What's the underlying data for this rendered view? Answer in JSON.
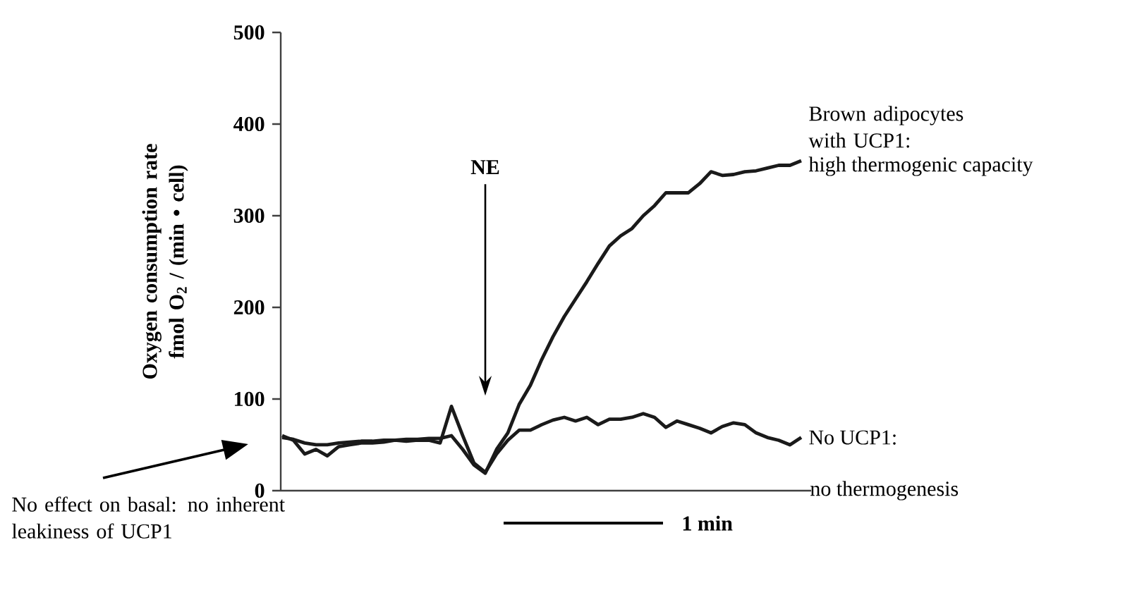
{
  "chart_data": {
    "type": "line",
    "ylabel": "Oxygen consumption rate fmol O$_{2}$ / (min • cell)",
    "categories": [
      null,
      null,
      null,
      null,
      null,
      null,
      null,
      null,
      null,
      null,
      null,
      null,
      null,
      null,
      null,
      null,
      null,
      null,
      null,
      null,
      null,
      null,
      null,
      null,
      null,
      null,
      null,
      null,
      null,
      null,
      null,
      null,
      null,
      null,
      null,
      null,
      null,
      null,
      null,
      null,
      null,
      null,
      null,
      null,
      null,
      null,
      null
    ],
    "ylim": [
      0,
      500
    ],
    "yticks": [
      0,
      100,
      200,
      300,
      400,
      500
    ],
    "legend": false,
    "series": [
      {
        "name": "Brown adipocytes with UCP1:",
        "color": "#1a1a1a",
        "values": [
          58,
          56,
          52,
          50,
          50,
          52,
          53,
          54,
          54,
          55,
          55,
          56,
          56,
          57,
          57,
          60,
          45,
          28,
          19,
          45,
          63,
          94,
          115,
          143,
          168,
          190,
          209,
          228,
          248,
          267,
          278,
          286,
          300,
          311,
          325,
          325,
          325,
          335,
          348,
          344,
          345,
          348,
          349,
          352,
          355,
          355,
          360
        ]
      },
      {
        "name": "No UCP1:",
        "color": "#1a1a1a",
        "values": [
          60,
          55,
          40,
          45,
          38,
          48,
          50,
          52,
          52,
          53,
          55,
          54,
          55,
          55,
          52,
          92,
          60,
          30,
          20,
          40,
          55,
          66,
          66,
          72,
          77,
          80,
          76,
          80,
          72,
          78,
          78,
          80,
          84,
          80,
          69,
          76,
          72,
          68,
          63,
          70,
          74,
          72,
          63,
          58,
          55,
          50,
          58
        ]
      }
    ],
    "annotations": [
      "NE",
      "high thermogenic capacity",
      "no thermogenesis",
      "1 min",
      "No effect on basal: no inherent leakiness of UCP1"
    ]
  }
}
